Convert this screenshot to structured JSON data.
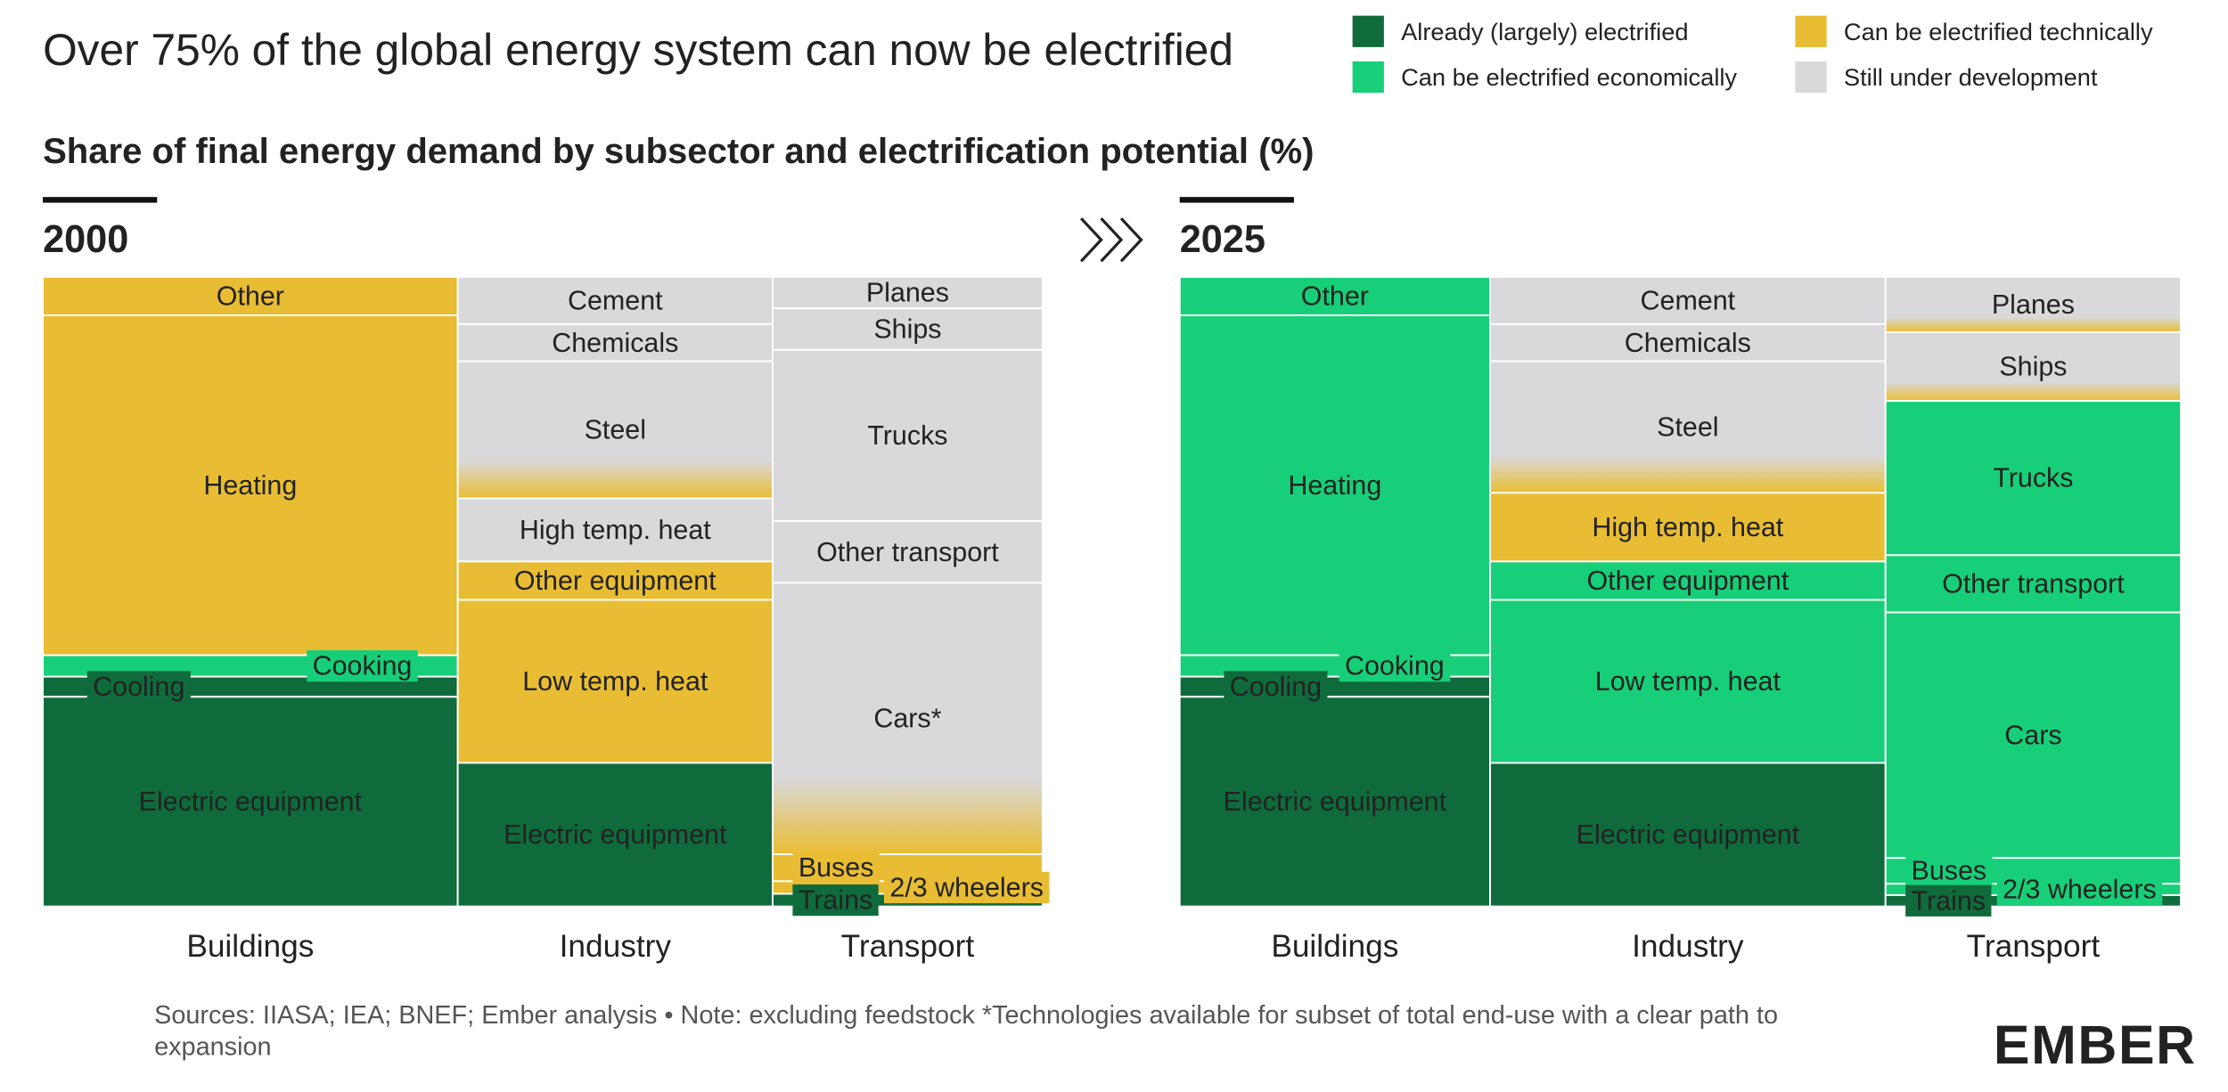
{
  "header": {
    "title": "Over 75% of the global energy system can now be electrified",
    "subtitle": "Share of final energy demand by subsector and electrification potential (%)"
  },
  "legend": [
    {
      "name": "Already (largely) electrified",
      "color": "#0f6b3c"
    },
    {
      "name": "Can be electrified economically",
      "color": "#17cf78"
    },
    {
      "name": "Can be electrified technically",
      "color": "#e9bd33"
    },
    {
      "name": "Still under development",
      "color": "#d9d9db"
    }
  ],
  "chart_data": [
    {
      "type": "mekko",
      "title": "2000",
      "columns": [
        {
          "name": "Buildings",
          "share": 41.5,
          "segments": [
            {
              "label": "Other",
              "value": 6.1,
              "category": 2
            },
            {
              "label": "Heating",
              "value": 54,
              "category": 2
            },
            {
              "label": "Cooking",
              "value": 3.4,
              "category": 1
            },
            {
              "label": "Cooling",
              "value": 3.2,
              "category": 0
            },
            {
              "label": "Electric equipment",
              "value": 33.3,
              "category": 0
            }
          ]
        },
        {
          "name": "Industry",
          "share": 31.5,
          "segments": [
            {
              "label": "Cement",
              "value": 7.5,
              "category": 3
            },
            {
              "label": "Chemicals",
              "value": 5.9,
              "category": 3
            },
            {
              "label": "Steel",
              "value": 21.8,
              "category": 3,
              "fade_to": 2
            },
            {
              "label": "High temp. heat",
              "value": 10,
              "category": 3
            },
            {
              "label": "Other equipment",
              "value": 6.1,
              "category": 2
            },
            {
              "label": "Low temp. heat",
              "value": 25.9,
              "category": 2
            },
            {
              "label": "Electric equipment",
              "value": 22.8,
              "category": 0
            }
          ]
        },
        {
          "name": "Transport",
          "share": 27,
          "segments": [
            {
              "label": "Planes",
              "value": 5,
              "category": 3
            },
            {
              "label": "Ships",
              "value": 6.6,
              "category": 3
            },
            {
              "label": "Trucks",
              "value": 27.2,
              "category": 3
            },
            {
              "label": "Other transport",
              "value": 9.8,
              "category": 3
            },
            {
              "label": "Cars*",
              "value": 43.1,
              "category": 3,
              "fade_to": 2
            },
            {
              "label": "Buses",
              "value": 4.3,
              "category": 2
            },
            {
              "label": "2/3 wheelers",
              "value": 2,
              "category": 2
            },
            {
              "label": "Trains",
              "value": 2,
              "category": 0
            }
          ]
        }
      ]
    },
    {
      "type": "mekko",
      "title": "2025",
      "columns": [
        {
          "name": "Buildings",
          "share": 31,
          "segments": [
            {
              "label": "Other",
              "value": 6.1,
              "category": 1
            },
            {
              "label": "Heating",
              "value": 54,
              "category": 1
            },
            {
              "label": "Cooking",
              "value": 3.4,
              "category": 1
            },
            {
              "label": "Cooling",
              "value": 3.2,
              "category": 0
            },
            {
              "label": "Electric equipment",
              "value": 33.3,
              "category": 0
            }
          ]
        },
        {
          "name": "Industry",
          "share": 39.5,
          "segments": [
            {
              "label": "Cement",
              "value": 7.5,
              "category": 3
            },
            {
              "label": "Chemicals",
              "value": 5.9,
              "category": 3
            },
            {
              "label": "Steel",
              "value": 20.9,
              "category": 3,
              "fade_to": 2
            },
            {
              "label": "High temp. heat",
              "value": 10.9,
              "category": 2
            },
            {
              "label": "Other equipment",
              "value": 6.1,
              "category": 1
            },
            {
              "label": "Low temp. heat",
              "value": 25.9,
              "category": 1
            },
            {
              "label": "Electric equipment",
              "value": 22.8,
              "category": 0
            }
          ]
        },
        {
          "name": "Transport",
          "share": 29.5,
          "segments": [
            {
              "label": "Planes",
              "value": 8.8,
              "category": 3,
              "fade_to": 2
            },
            {
              "label": "Ships",
              "value": 10.9,
              "category": 3,
              "fade_to": 2
            },
            {
              "label": "Trucks",
              "value": 24.5,
              "category": 1
            },
            {
              "label": "Other transport",
              "value": 9.1,
              "category": 1
            },
            {
              "label": "Cars",
              "value": 39,
              "category": 1
            },
            {
              "label": "Buses",
              "value": 4.1,
              "category": 1
            },
            {
              "label": "2/3 wheelers",
              "value": 1.8,
              "category": 1
            },
            {
              "label": "Trains",
              "value": 1.8,
              "category": 0
            }
          ]
        }
      ]
    }
  ],
  "source": "Sources: IIASA; IEA; BNEF; Ember analysis • Note: excluding feedstock *Technologies available for subset of total end-use with a clear path to expansion",
  "logo": "EMBER"
}
